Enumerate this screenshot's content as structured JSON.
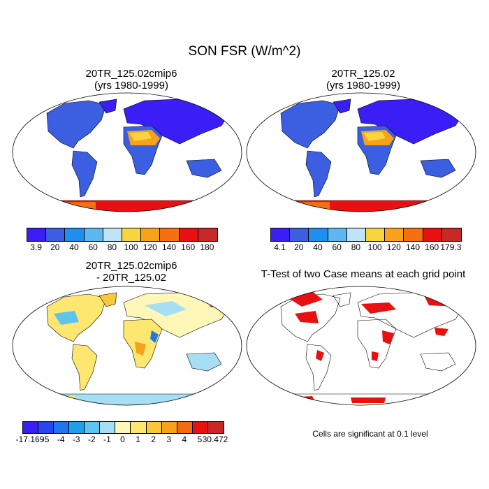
{
  "title": "SON FSR (W/m^2)",
  "panels": {
    "p1": {
      "title_line1": "20TR_125.02cmip6",
      "title_line2": "(yrs 1980-1999)"
    },
    "p2": {
      "title_line1": "20TR_125.02",
      "title_line2": "(yrs 1980-1999)"
    },
    "p3": {
      "title_line1": "20TR_125.02cmip6",
      "title_line2": "- 20TR_125.02"
    },
    "p4": {
      "title_line1": "T-Test of two Case means at each grid point",
      "title_line2": ""
    }
  },
  "significance_note": "Cells are significant at 0.1 level",
  "colorbars": {
    "abs1": {
      "labels": [
        "3.9",
        "20",
        "40",
        "60",
        "80",
        "100",
        "120",
        "140",
        "160",
        "180"
      ],
      "colors": [
        "#3a1ef5",
        "#3b5fe0",
        "#1f8ef0",
        "#5cb8ee",
        "#bfe4f6",
        "#f8d440",
        "#f7a21a",
        "#f47010",
        "#e81010",
        "#c82828"
      ]
    },
    "abs2": {
      "labels": [
        "4.1",
        "20",
        "40",
        "60",
        "80",
        "100",
        "120",
        "140",
        "160",
        "179.3"
      ],
      "colors": [
        "#3a1ef5",
        "#3b5fe0",
        "#1f8ef0",
        "#5cb8ee",
        "#bfe4f6",
        "#f8d440",
        "#f7a21a",
        "#f47010",
        "#e81010",
        "#c82828"
      ]
    },
    "diff": {
      "labels": [
        "-17.169",
        "-5",
        "-4",
        "-3",
        "-2",
        "-1",
        "0",
        "1",
        "2",
        "3",
        "4",
        "5",
        "30.472"
      ],
      "colors": [
        "#3a1ef5",
        "#2846f0",
        "#1f76ee",
        "#1fa0ec",
        "#5cc4ee",
        "#a6def4",
        "#fff7b8",
        "#fde770",
        "#f8c838",
        "#f7a21a",
        "#f46a10",
        "#e81010",
        "#c82828"
      ]
    }
  }
}
